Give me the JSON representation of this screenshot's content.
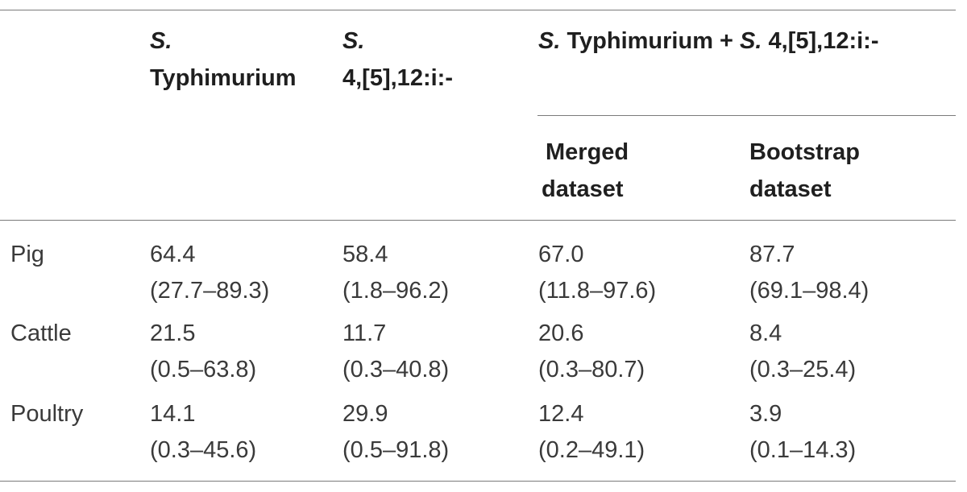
{
  "header": {
    "col1": {
      "italic": "S.",
      "text": "Typhimurium"
    },
    "col2": {
      "italic": "S.",
      "text": "4,[5],12:i:-"
    },
    "combined": {
      "italic_1": "S.",
      "text_1": " Typhimurium + ",
      "italic_2": "S.",
      "text_2": " 4,[5],12:i:-"
    },
    "sub1": {
      "line1": "Merged",
      "line2": "dataset"
    },
    "sub2": {
      "line1": "Bootstrap",
      "line2": "dataset"
    }
  },
  "rows": [
    {
      "label": "Pig",
      "values": [
        {
          "est": "64.4",
          "ci": "(27.7–89.3)"
        },
        {
          "est": "58.4",
          "ci": "(1.8–96.2)"
        },
        {
          "est": "67.0",
          "ci": "(11.8–97.6)"
        },
        {
          "est": "87.7",
          "ci": "(69.1–98.4)"
        }
      ]
    },
    {
      "label": "Cattle",
      "values": [
        {
          "est": "21.5",
          "ci": "(0.5–63.8)"
        },
        {
          "est": "11.7",
          "ci": "(0.3–40.8)"
        },
        {
          "est": "20.6",
          "ci": "(0.3–80.7)"
        },
        {
          "est": "8.4",
          "ci": "(0.3–25.4)"
        }
      ]
    },
    {
      "label": "Poultry",
      "values": [
        {
          "est": "14.1",
          "ci": "(0.3–45.6)"
        },
        {
          "est": "29.9",
          "ci": "(0.5–91.8)"
        },
        {
          "est": "12.4",
          "ci": "(0.2–49.1)"
        },
        {
          "est": "3.9",
          "ci": "(0.1–14.3)"
        }
      ]
    }
  ]
}
